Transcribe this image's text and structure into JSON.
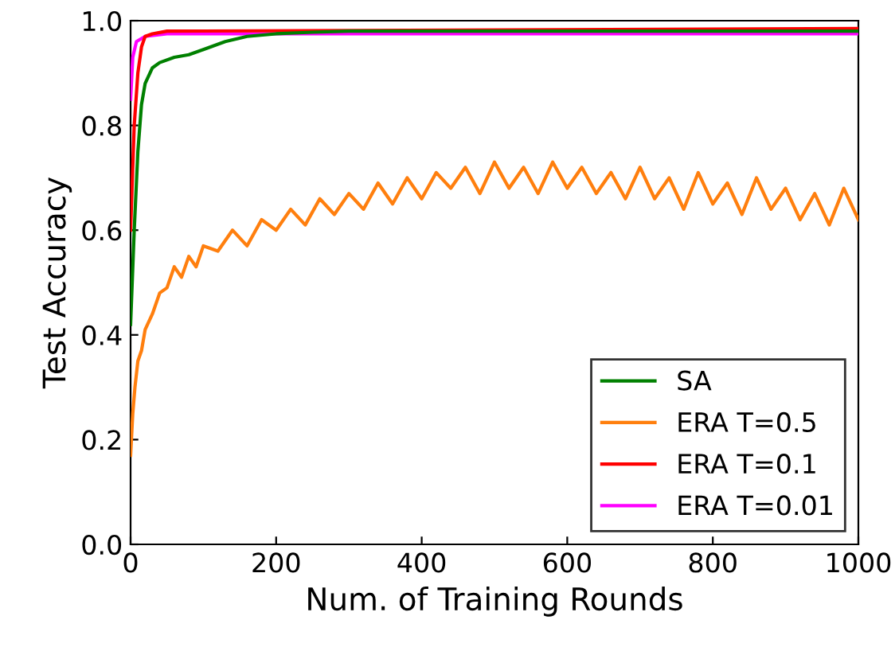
{
  "chart_data": {
    "type": "line",
    "xlabel": "Num. of Training Rounds",
    "ylabel": "Test Accuracy",
    "xlim": [
      0,
      1000
    ],
    "ylim": [
      0.0,
      1.0
    ],
    "xticks": [
      0,
      200,
      400,
      600,
      800,
      1000
    ],
    "yticks": [
      {
        "value": 0.0,
        "label": "0.0"
      },
      0.2,
      0.4,
      0.6,
      0.8,
      {
        "value": 1.0,
        "label": "1.0"
      }
    ],
    "grid": false,
    "legend": "bottom right",
    "line_style": "solid",
    "series": [
      {
        "name": "SA",
        "color": "#008000",
        "x": [
          0,
          5,
          10,
          15,
          20,
          30,
          40,
          60,
          80,
          100,
          130,
          160,
          200,
          250,
          300,
          1000
        ],
        "values": [
          0.42,
          0.6,
          0.75,
          0.84,
          0.88,
          0.91,
          0.92,
          0.93,
          0.935,
          0.945,
          0.96,
          0.97,
          0.975,
          0.978,
          0.98,
          0.98
        ]
      },
      {
        "name": "ERA T=0.5",
        "color": "#ff7f0e",
        "x": [
          0,
          3,
          6,
          10,
          15,
          20,
          30,
          40,
          50,
          60,
          70,
          80,
          90,
          100,
          120,
          140,
          160,
          180,
          200,
          220,
          240,
          260,
          280,
          300,
          320,
          340,
          360,
          380,
          400,
          420,
          440,
          460,
          480,
          500,
          520,
          540,
          560,
          580,
          600,
          620,
          640,
          660,
          680,
          700,
          720,
          740,
          760,
          780,
          800,
          820,
          840,
          860,
          880,
          900,
          920,
          940,
          960,
          980,
          1000
        ],
        "values": [
          0.17,
          0.25,
          0.3,
          0.35,
          0.37,
          0.41,
          0.44,
          0.48,
          0.49,
          0.53,
          0.51,
          0.55,
          0.53,
          0.57,
          0.56,
          0.6,
          0.57,
          0.62,
          0.6,
          0.64,
          0.61,
          0.66,
          0.63,
          0.67,
          0.64,
          0.69,
          0.65,
          0.7,
          0.66,
          0.71,
          0.68,
          0.72,
          0.67,
          0.73,
          0.68,
          0.72,
          0.67,
          0.73,
          0.68,
          0.72,
          0.67,
          0.71,
          0.66,
          0.72,
          0.66,
          0.7,
          0.64,
          0.71,
          0.65,
          0.69,
          0.63,
          0.7,
          0.64,
          0.68,
          0.62,
          0.67,
          0.61,
          0.68,
          0.62
        ]
      },
      {
        "name": "ERA T=0.1",
        "color": "#ff0000",
        "x": [
          0,
          5,
          10,
          15,
          20,
          30,
          50,
          1000
        ],
        "values": [
          0.6,
          0.8,
          0.9,
          0.95,
          0.97,
          0.975,
          0.98,
          0.985
        ]
      },
      {
        "name": "ERA T=0.01",
        "color": "#ff00ff",
        "x": [
          0,
          3,
          8,
          20,
          50,
          1000
        ],
        "values": [
          0.85,
          0.93,
          0.96,
          0.97,
          0.975,
          0.975
        ]
      }
    ]
  }
}
